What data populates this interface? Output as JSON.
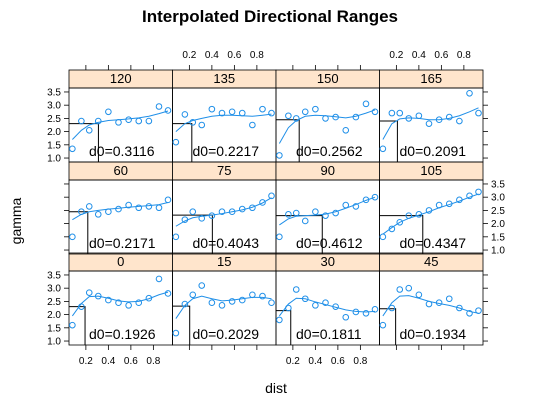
{
  "chart_data": {
    "type": "scatter",
    "title": "Interpolated Directional Ranges",
    "xlabel": "dist",
    "ylabel": "gamma",
    "xlim": [
      0.05,
      0.97
    ],
    "ylim": [
      0.85,
      3.65
    ],
    "x_ticks": [
      0.2,
      0.4,
      0.6,
      0.8
    ],
    "x_tick_labels": [
      "0.2",
      "0.4",
      "0.6",
      "0.8"
    ],
    "y_ticks": [
      1.0,
      1.5,
      2.0,
      2.5,
      3.0,
      3.5
    ],
    "y_tick_labels": [
      "1.0",
      "1.5",
      "2.0",
      "2.5",
      "3.0",
      "3.5"
    ],
    "colors": {
      "points": "#1f8fe8",
      "smooth": "#1f8fe8",
      "strip": "#ffe5cc",
      "refline": "#000000"
    },
    "layout": "4 columns x 3 rows",
    "panels": [
      {
        "direction": "0",
        "d0": 0.1926,
        "d0_label": "d0=0.1926",
        "range_gamma": 2.3,
        "x": [
          0.08,
          0.16,
          0.23,
          0.31,
          0.4,
          0.49,
          0.58,
          0.67,
          0.76,
          0.85,
          0.93
        ],
        "y": [
          1.6,
          2.3,
          2.83,
          2.7,
          2.55,
          2.45,
          2.35,
          2.45,
          2.62,
          3.35,
          2.8
        ],
        "smooth_y": [
          1.95,
          2.42,
          2.68,
          2.7,
          2.62,
          2.52,
          2.48,
          2.5,
          2.6,
          2.75,
          2.85
        ]
      },
      {
        "direction": "15",
        "d0": 0.2029,
        "d0_label": "d0=0.2029",
        "range_gamma": 2.32,
        "x": [
          0.08,
          0.16,
          0.23,
          0.31,
          0.4,
          0.49,
          0.58,
          0.67,
          0.76,
          0.85,
          0.93
        ],
        "y": [
          1.3,
          2.4,
          2.75,
          3.1,
          2.45,
          2.35,
          2.5,
          2.55,
          2.75,
          2.7,
          2.45
        ],
        "smooth_y": [
          1.85,
          2.35,
          2.6,
          2.7,
          2.6,
          2.52,
          2.55,
          2.6,
          2.65,
          2.65,
          2.6
        ]
      },
      {
        "direction": "30",
        "d0": 0.1811,
        "d0_label": "d0=0.1811",
        "range_gamma": 2.15,
        "x": [
          0.08,
          0.16,
          0.23,
          0.31,
          0.4,
          0.49,
          0.58,
          0.67,
          0.76,
          0.85,
          0.93
        ],
        "y": [
          1.8,
          2.25,
          2.95,
          2.6,
          2.35,
          2.45,
          2.3,
          1.9,
          2.1,
          2.05,
          2.2
        ],
        "smooth_y": [
          1.95,
          2.4,
          2.62,
          2.6,
          2.48,
          2.38,
          2.28,
          2.18,
          2.12,
          2.1,
          2.12
        ]
      },
      {
        "direction": "45",
        "d0": 0.1934,
        "d0_label": "d0=0.1934",
        "range_gamma": 2.22,
        "x": [
          0.08,
          0.16,
          0.23,
          0.31,
          0.4,
          0.49,
          0.58,
          0.67,
          0.76,
          0.85,
          0.93
        ],
        "y": [
          1.6,
          2.25,
          2.95,
          3.0,
          2.75,
          2.4,
          2.45,
          2.6,
          2.25,
          2.05,
          2.15
        ],
        "smooth_y": [
          1.95,
          2.45,
          2.7,
          2.72,
          2.62,
          2.5,
          2.42,
          2.35,
          2.25,
          2.12,
          2.05
        ]
      },
      {
        "direction": "60",
        "d0": 0.2171,
        "d0_label": "d0=0.2171",
        "range_gamma": 2.45,
        "x": [
          0.08,
          0.16,
          0.23,
          0.31,
          0.4,
          0.49,
          0.58,
          0.67,
          0.76,
          0.85,
          0.93
        ],
        "y": [
          1.5,
          2.45,
          2.65,
          2.35,
          2.45,
          2.55,
          2.7,
          2.6,
          2.65,
          2.6,
          2.9
        ],
        "smooth_y": [
          2.15,
          2.35,
          2.45,
          2.5,
          2.55,
          2.58,
          2.62,
          2.65,
          2.68,
          2.72,
          2.8
        ]
      },
      {
        "direction": "75",
        "d0": 0.4043,
        "d0_label": "d0=0.4043",
        "range_gamma": 2.32,
        "x": [
          0.08,
          0.16,
          0.23,
          0.31,
          0.4,
          0.49,
          0.58,
          0.67,
          0.76,
          0.85,
          0.93
        ],
        "y": [
          1.5,
          2.15,
          2.45,
          2.2,
          2.3,
          2.45,
          2.45,
          2.55,
          2.6,
          2.8,
          3.05
        ],
        "smooth_y": [
          1.9,
          2.1,
          2.22,
          2.28,
          2.32,
          2.38,
          2.45,
          2.52,
          2.62,
          2.78,
          2.98
        ]
      },
      {
        "direction": "90",
        "d0": 0.4612,
        "d0_label": "d0=0.4612",
        "range_gamma": 2.3,
        "x": [
          0.08,
          0.16,
          0.23,
          0.31,
          0.4,
          0.49,
          0.58,
          0.67,
          0.76,
          0.85,
          0.93
        ],
        "y": [
          1.5,
          2.35,
          2.4,
          2.1,
          2.45,
          2.3,
          2.4,
          2.7,
          2.65,
          2.9,
          3.0
        ],
        "smooth_y": [
          1.95,
          2.18,
          2.28,
          2.3,
          2.32,
          2.36,
          2.45,
          2.58,
          2.72,
          2.88,
          3.0
        ]
      },
      {
        "direction": "105",
        "d0": 0.4347,
        "d0_label": "d0=0.4347",
        "range_gamma": 2.3,
        "x": [
          0.08,
          0.16,
          0.23,
          0.31,
          0.4,
          0.49,
          0.58,
          0.67,
          0.76,
          0.85,
          0.93
        ],
        "y": [
          1.5,
          1.8,
          2.05,
          2.3,
          2.35,
          2.5,
          2.7,
          2.75,
          2.9,
          3.05,
          3.2
        ],
        "smooth_y": [
          1.6,
          1.85,
          2.05,
          2.2,
          2.32,
          2.45,
          2.6,
          2.72,
          2.85,
          3.0,
          3.12
        ]
      },
      {
        "direction": "120",
        "d0": 0.3116,
        "d0_label": "d0=0.3116",
        "range_gamma": 2.3,
        "x": [
          0.08,
          0.16,
          0.23,
          0.31,
          0.4,
          0.49,
          0.58,
          0.67,
          0.76,
          0.85,
          0.93
        ],
        "y": [
          1.35,
          2.4,
          2.05,
          2.4,
          2.75,
          2.35,
          2.45,
          2.4,
          2.4,
          2.95,
          2.8
        ],
        "smooth_y": [
          1.7,
          2.05,
          2.25,
          2.35,
          2.42,
          2.45,
          2.48,
          2.52,
          2.58,
          2.68,
          2.78
        ]
      },
      {
        "direction": "135",
        "d0": 0.2217,
        "d0_label": "d0=0.2217",
        "range_gamma": 2.3,
        "x": [
          0.08,
          0.16,
          0.23,
          0.31,
          0.4,
          0.49,
          0.58,
          0.67,
          0.76,
          0.85,
          0.93
        ],
        "y": [
          1.6,
          2.65,
          2.35,
          2.25,
          2.85,
          2.7,
          2.75,
          2.7,
          2.25,
          2.85,
          2.7
        ],
        "smooth_y": [
          2.0,
          2.3,
          2.42,
          2.5,
          2.58,
          2.62,
          2.62,
          2.6,
          2.58,
          2.62,
          2.66
        ]
      },
      {
        "direction": "150",
        "d0": 0.2562,
        "d0_label": "d0=0.2562",
        "range_gamma": 2.45,
        "x": [
          0.08,
          0.16,
          0.23,
          0.31,
          0.4,
          0.49,
          0.58,
          0.67,
          0.76,
          0.85,
          0.93
        ],
        "y": [
          1.1,
          2.6,
          2.5,
          2.75,
          2.85,
          2.5,
          2.55,
          2.05,
          2.55,
          3.05,
          2.75
        ],
        "smooth_y": [
          1.55,
          2.15,
          2.42,
          2.58,
          2.62,
          2.6,
          2.56,
          2.52,
          2.58,
          2.7,
          2.82
        ]
      },
      {
        "direction": "165",
        "d0": 0.2091,
        "d0_label": "d0=0.2091",
        "range_gamma": 2.4,
        "x": [
          0.08,
          0.16,
          0.23,
          0.31,
          0.4,
          0.49,
          0.58,
          0.67,
          0.76,
          0.85,
          0.93
        ],
        "y": [
          1.35,
          2.7,
          2.7,
          2.5,
          2.6,
          2.3,
          2.45,
          2.55,
          2.4,
          3.45,
          2.7
        ],
        "smooth_y": [
          1.7,
          2.3,
          2.48,
          2.52,
          2.5,
          2.45,
          2.45,
          2.5,
          2.6,
          2.75,
          2.9
        ]
      }
    ]
  }
}
